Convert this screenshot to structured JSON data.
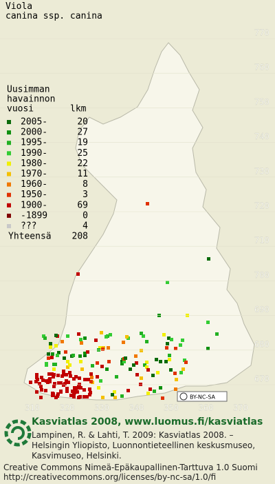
{
  "title": [
    "Viola",
    "canina ssp. canina"
  ],
  "legend": {
    "header": [
      "Uusimman",
      "havainnon",
      "vuosi"
    ],
    "count_header": "lkm",
    "entries": [
      {
        "label": "2005-",
        "count": 20,
        "color": "#0b6b0b"
      },
      {
        "label": "2000-",
        "count": 27,
        "color": "#0f8f0f"
      },
      {
        "label": "1995-",
        "count": 19,
        "color": "#22b022"
      },
      {
        "label": "1990-",
        "count": 25,
        "color": "#33cc33"
      },
      {
        "label": "1980-",
        "count": 22,
        "color": "#f0f000"
      },
      {
        "label": "1970-",
        "count": 11,
        "color": "#f4c000"
      },
      {
        "label": "1960-",
        "count": 8,
        "color": "#f07800"
      },
      {
        "label": "1950-",
        "count": 3,
        "color": "#e03000"
      },
      {
        "label": "1900-",
        "count": 69,
        "color": "#c00000"
      },
      {
        "label": "-1899",
        "count": 0,
        "color": "#800000"
      },
      {
        "label": "???",
        "count": 4,
        "color": "#c8c8c8"
      }
    ],
    "total_label": "Yhteensä",
    "total": 208
  },
  "grid": {
    "north": [
      770,
      760,
      750,
      740,
      730,
      720,
      710,
      700,
      690,
      680,
      670
    ],
    "east": [
      310,
      320,
      330,
      340,
      350,
      360,
      370
    ]
  },
  "license_badge": "BY-NC-SA",
  "footer": {
    "heading": "Kasviatlas 2008, www.luomus.fi/kasviatlas",
    "citation": [
      "Lampinen, R. & Lahti, T. 2009: Kasviatlas 2008. –",
      "Helsingin Yliopisto, Luonnontieteellinen keskusmuseo,",
      "Kasvimuseo, Helsinki."
    ],
    "license": [
      "Creative Commons Nimeä-Epäkaupallinen-Tarttuva 1.0 Suomi",
      "http://creativecommons.org/licenses/by-nc-sa/1.0/fi"
    ]
  }
}
